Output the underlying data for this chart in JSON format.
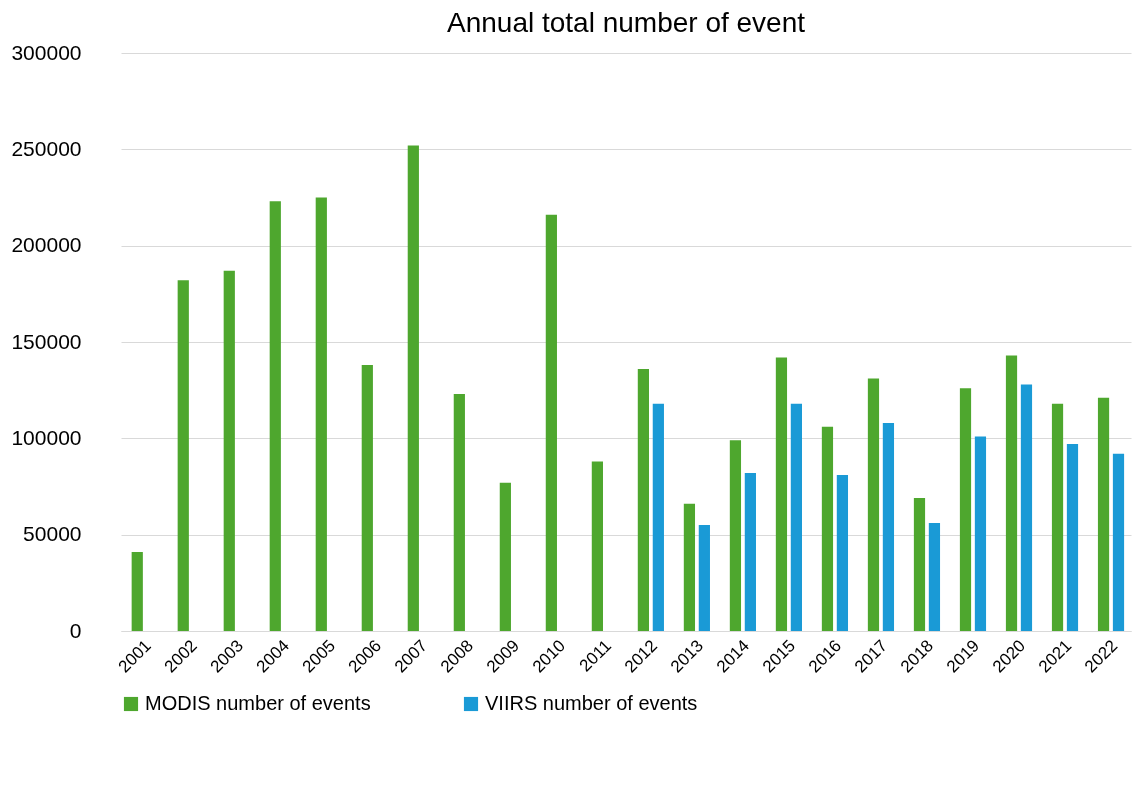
{
  "chart_data": {
    "type": "bar",
    "title": "Annual total number of event",
    "categories": [
      "2001",
      "2002",
      "2003",
      "2004",
      "2005",
      "2006",
      "2007",
      "2008",
      "2009",
      "2010",
      "2011",
      "2012",
      "2013",
      "2014",
      "2015",
      "2016",
      "2017",
      "2018",
      "2019",
      "2020",
      "2021",
      "2022"
    ],
    "series": [
      {
        "name": "MODIS number of events",
        "color": "#4ea72e",
        "values": [
          41000,
          182000,
          187000,
          223000,
          225000,
          138000,
          252000,
          123000,
          77000,
          216000,
          88000,
          136000,
          66000,
          99000,
          142000,
          106000,
          131000,
          69000,
          126000,
          143000,
          118000,
          121000
        ]
      },
      {
        "name": "VIIRS number of events",
        "color": "#1a9ad6",
        "values": [
          null,
          null,
          null,
          null,
          null,
          null,
          null,
          null,
          null,
          null,
          null,
          118000,
          55000,
          82000,
          118000,
          81000,
          108000,
          56000,
          101000,
          128000,
          97000,
          92000
        ]
      }
    ],
    "ylim": [
      0,
      300000
    ],
    "yticks": [
      0,
      50000,
      100000,
      150000,
      200000,
      250000,
      300000
    ],
    "grid": "y",
    "legend": "bottom"
  }
}
